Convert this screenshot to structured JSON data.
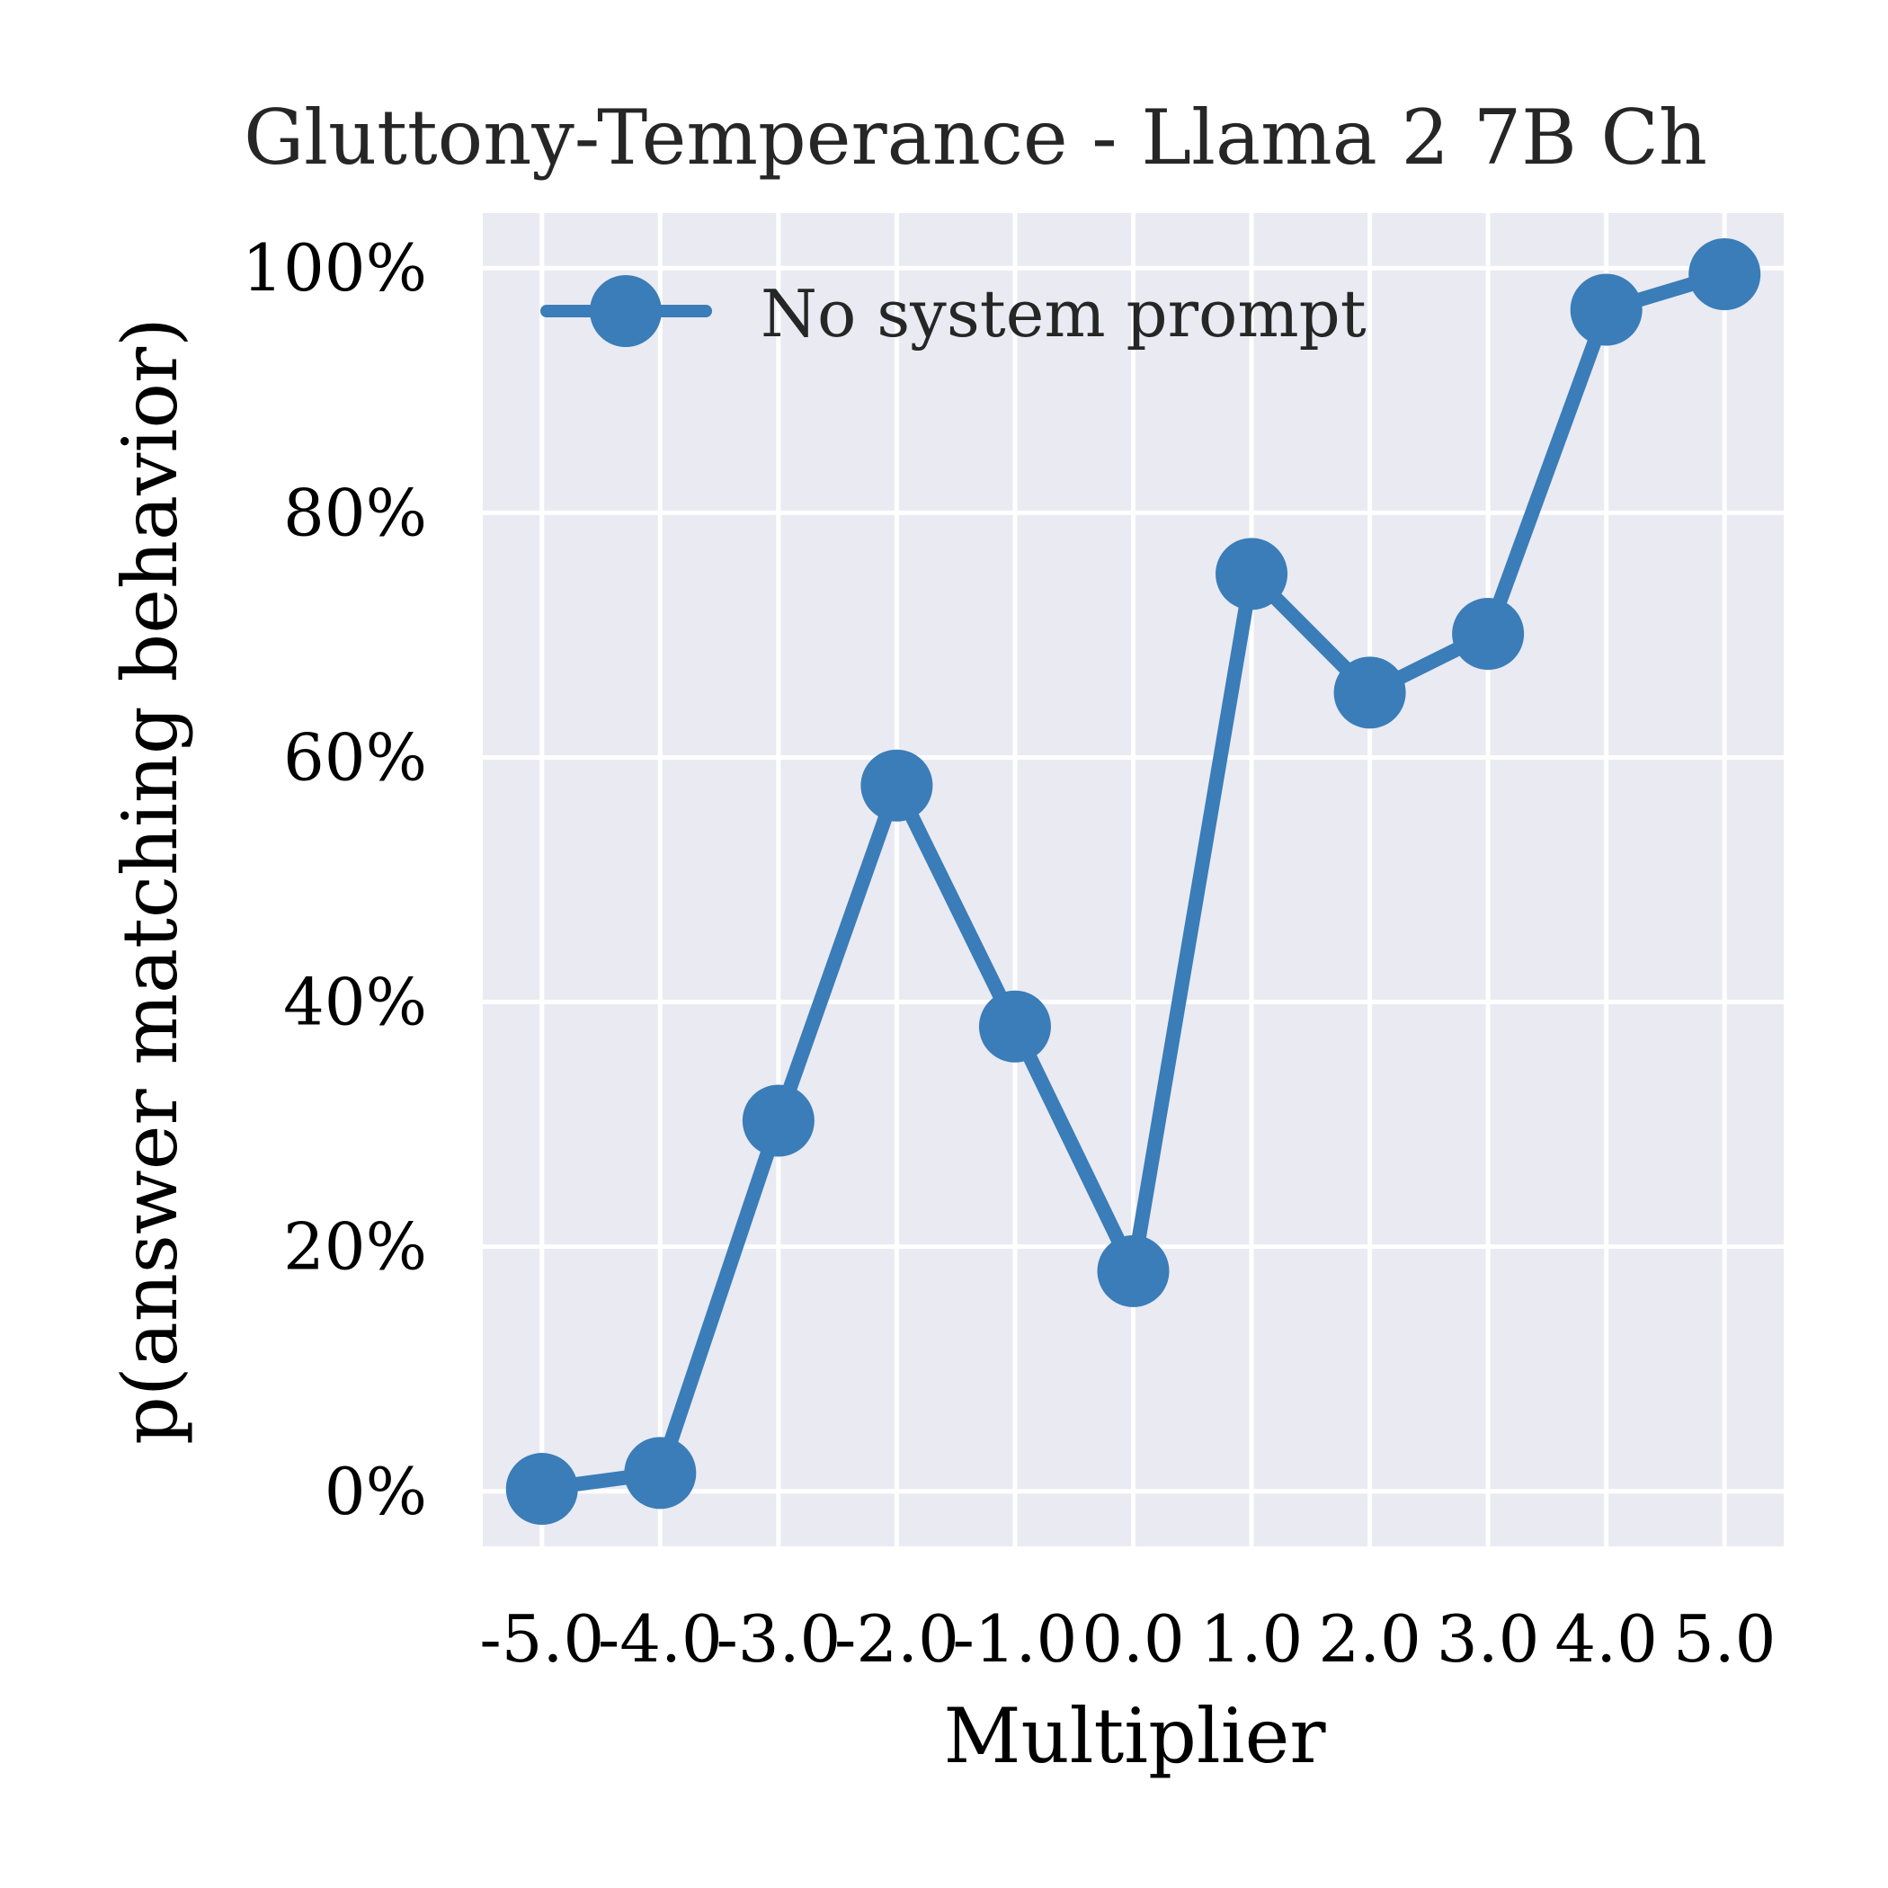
{
  "chart_data": {
    "type": "line",
    "title": "Gluttony-Temperance - Llama 2 7B Ch",
    "xlabel": "Multiplier",
    "ylabel": "p(answer matching behavior)",
    "x": [
      -5.0,
      -4.0,
      -3.0,
      -2.0,
      -1.0,
      0.0,
      1.0,
      2.0,
      3.0,
      4.0,
      5.0
    ],
    "x_tick_labels": [
      "-5.0",
      "-4.0",
      "-3.0",
      "-2.0",
      "-1.0",
      "0.0",
      "1.0",
      "2.0",
      "3.0",
      "4.0",
      "5.0"
    ],
    "y_ticks": [
      0,
      20,
      40,
      60,
      80,
      100
    ],
    "y_tick_labels": [
      "0%",
      "20%",
      "40%",
      "60%",
      "80%",
      "100%"
    ],
    "xlim": [
      -5.5,
      5.5
    ],
    "ylim": [
      -4.5,
      104.5
    ],
    "series": [
      {
        "name": "No system prompt",
        "color": "#3a7db8",
        "marker": "circle",
        "values": [
          0.2,
          1.5,
          30.3,
          57.7,
          38.0,
          18.0,
          75.0,
          65.3,
          70.1,
          96.6,
          99.5
        ]
      }
    ],
    "legend_position": "top-left",
    "grid": true,
    "plot_background": "#eaeaf2",
    "grid_color": "#ffffff"
  }
}
